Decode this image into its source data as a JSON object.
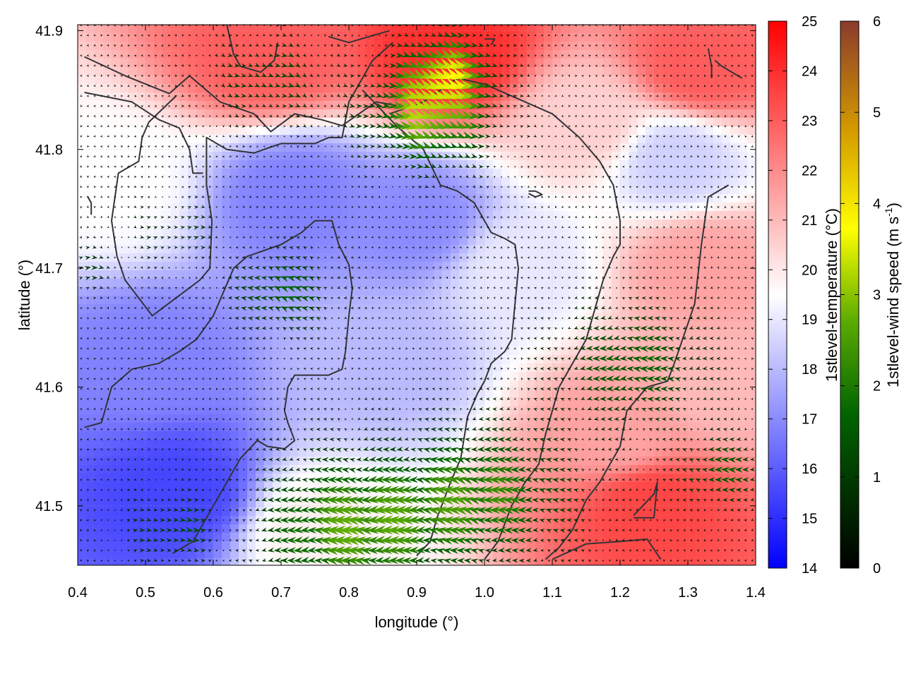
{
  "chart_data": {
    "type": "heatmap",
    "title": "",
    "xlabel": "longitude (°)",
    "ylabel": "latitude (°)",
    "xlim": [
      0.4,
      1.4
    ],
    "ylim": [
      41.45,
      41.905
    ],
    "x_ticks": [
      "0.4",
      "0.5",
      "0.6",
      "0.7",
      "0.8",
      "0.9",
      "1.0",
      "1.1",
      "1.2",
      "1.3",
      "1.4"
    ],
    "y_ticks": [
      "41.5",
      "41.6",
      "41.7",
      "41.8",
      "41.9"
    ],
    "grid": true,
    "temperature_colorbar": {
      "label": "1stlevel-temperature (°C)",
      "range": [
        14,
        25
      ],
      "ticks": [
        "14",
        "15",
        "16",
        "17",
        "18",
        "19",
        "20",
        "21",
        "22",
        "23",
        "24",
        "25"
      ],
      "colors": [
        "#0000ff",
        "#ffffff",
        "#ff0000"
      ]
    },
    "wind_colorbar": {
      "label_main": "1stlevel-wind speed (m s",
      "label_sup": "-1",
      "label_end": ")",
      "range": [
        0,
        6
      ],
      "ticks": [
        "0",
        "1",
        "2",
        "3",
        "4",
        "5",
        "6"
      ],
      "colors": [
        "#000000",
        "#006400",
        "#5aaa00",
        "#ffff00",
        "#d49a00",
        "#8b3a2b"
      ]
    },
    "temperature_regions": [
      {
        "x": 0.68,
        "y": 41.88,
        "temp": 23.0
      },
      {
        "x": 0.95,
        "y": 41.88,
        "temp": 24.0
      },
      {
        "x": 1.32,
        "y": 41.87,
        "temp": 23.0
      },
      {
        "x": 1.25,
        "y": 41.5,
        "temp": 23.5
      },
      {
        "x": 1.2,
        "y": 41.56,
        "temp": 21.5
      },
      {
        "x": 1.32,
        "y": 41.7,
        "temp": 21.5
      },
      {
        "x": 1.35,
        "y": 41.6,
        "temp": 21.0
      },
      {
        "x": 1.15,
        "y": 41.82,
        "temp": 20.5
      },
      {
        "x": 0.72,
        "y": 41.76,
        "temp": 16.8
      },
      {
        "x": 0.9,
        "y": 41.74,
        "temp": 17.0
      },
      {
        "x": 0.55,
        "y": 41.51,
        "temp": 15.5
      },
      {
        "x": 0.5,
        "y": 41.62,
        "temp": 16.8
      },
      {
        "x": 0.85,
        "y": 41.62,
        "temp": 18.0
      },
      {
        "x": 1.28,
        "y": 41.79,
        "temp": 18.5
      },
      {
        "x": 0.45,
        "y": 41.77,
        "temp": 19.5
      },
      {
        "x": 0.75,
        "y": 41.48,
        "temp": 19.8
      },
      {
        "x": 1.05,
        "y": 41.7,
        "temp": 19.0
      }
    ],
    "wind_field": {
      "regions": [
        {
          "x": 0.92,
          "y": 41.83,
          "u": 3.0,
          "v": -0.6,
          "radius": 0.09
        },
        {
          "x": 0.95,
          "y": 41.87,
          "u": 2.2,
          "v": -0.5,
          "radius": 0.06
        },
        {
          "x": 0.8,
          "y": 41.48,
          "u": -2.4,
          "v": 0.0,
          "radius": 0.13
        },
        {
          "x": 1.0,
          "y": 41.51,
          "u": -2.0,
          "v": 0.2,
          "radius": 0.12
        },
        {
          "x": 1.22,
          "y": 41.62,
          "u": -1.6,
          "v": 0.0,
          "radius": 0.1
        },
        {
          "x": 1.35,
          "y": 41.53,
          "u": -1.4,
          "v": 0.2,
          "radius": 0.06
        },
        {
          "x": 0.7,
          "y": 41.68,
          "u": -1.5,
          "v": 0.4,
          "radius": 0.07
        },
        {
          "x": 0.55,
          "y": 41.48,
          "u": 1.4,
          "v": 0.0,
          "radius": 0.07
        },
        {
          "x": 0.68,
          "y": 41.86,
          "u": 1.2,
          "v": -0.5,
          "radius": 0.08
        },
        {
          "x": 0.55,
          "y": 41.73,
          "u": 0.9,
          "v": 0.0,
          "radius": 0.06
        },
        {
          "x": 0.42,
          "y": 41.7,
          "u": 0.9,
          "v": 0.0,
          "radius": 0.04
        }
      ],
      "background_speed": 0.25
    },
    "contour_lines": [
      [
        [
          0.41,
          41.878
        ],
        [
          0.47,
          41.862
        ],
        [
          0.535,
          41.847
        ],
        [
          0.565,
          41.862
        ],
        [
          0.61,
          41.84
        ],
        [
          0.66,
          41.83
        ],
        [
          0.685,
          41.815
        ],
        [
          0.72,
          41.83
        ],
        [
          0.76,
          41.825
        ],
        [
          0.79,
          41.82
        ],
        [
          0.84,
          41.84
        ],
        [
          0.87,
          41.837
        ]
      ],
      [
        [
          0.41,
          41.848
        ],
        [
          0.48,
          41.84
        ],
        [
          0.52,
          41.825
        ],
        [
          0.55,
          41.818
        ],
        [
          0.565,
          41.8
        ],
        [
          0.57,
          41.78
        ],
        [
          0.585,
          41.78
        ]
      ],
      [
        [
          0.545,
          41.845
        ],
        [
          0.505,
          41.823
        ],
        [
          0.495,
          41.81
        ],
        [
          0.49,
          41.79
        ],
        [
          0.46,
          41.78
        ],
        [
          0.45,
          41.74
        ],
        [
          0.458,
          41.71
        ],
        [
          0.47,
          41.69
        ],
        [
          0.51,
          41.66
        ],
        [
          0.545,
          41.675
        ],
        [
          0.58,
          41.69
        ],
        [
          0.595,
          41.7
        ],
        [
          0.598,
          41.74
        ],
        [
          0.59,
          41.77
        ],
        [
          0.59,
          41.81
        ],
        [
          0.62,
          41.8
        ],
        [
          0.66,
          41.797
        ],
        [
          0.7,
          41.805
        ],
        [
          0.75,
          41.805
        ],
        [
          0.77,
          41.81
        ],
        [
          0.79,
          41.81
        ],
        [
          0.8,
          41.84
        ],
        [
          0.82,
          41.86
        ],
        [
          0.835,
          41.875
        ],
        [
          0.865,
          41.89
        ]
      ],
      [
        [
          0.415,
          41.76
        ],
        [
          0.42,
          41.755
        ],
        [
          0.42,
          41.745
        ]
      ],
      [
        [
          0.41,
          41.566
        ],
        [
          0.435,
          41.57
        ],
        [
          0.45,
          41.6
        ],
        [
          0.48,
          41.615
        ],
        [
          0.52,
          41.62
        ],
        [
          0.55,
          41.63
        ],
        [
          0.575,
          41.64
        ],
        [
          0.6,
          41.66
        ],
        [
          0.615,
          41.68
        ],
        [
          0.63,
          41.7
        ],
        [
          0.65,
          41.71
        ],
        [
          0.675,
          41.715
        ],
        [
          0.7,
          41.72
        ],
        [
          0.73,
          41.73
        ],
        [
          0.75,
          41.74
        ],
        [
          0.775,
          41.74
        ],
        [
          0.785,
          41.72
        ],
        [
          0.8,
          41.703
        ],
        [
          0.805,
          41.683
        ],
        [
          0.8,
          41.66
        ],
        [
          0.795,
          41.63
        ],
        [
          0.79,
          41.615
        ],
        [
          0.77,
          41.61
        ],
        [
          0.745,
          41.61
        ],
        [
          0.72,
          41.61
        ],
        [
          0.71,
          41.6
        ],
        [
          0.705,
          41.58
        ],
        [
          0.71,
          41.57
        ],
        [
          0.72,
          41.555
        ],
        [
          0.705,
          41.548
        ],
        [
          0.68,
          41.55
        ],
        [
          0.665,
          41.555
        ],
        [
          0.64,
          41.54
        ],
        [
          0.62,
          41.52
        ],
        [
          0.6,
          41.5
        ],
        [
          0.59,
          41.49
        ],
        [
          0.57,
          41.47
        ],
        [
          0.54,
          41.46
        ]
      ],
      [
        [
          0.82,
          41.85
        ],
        [
          0.87,
          41.82
        ],
        [
          0.91,
          41.8
        ],
        [
          0.935,
          41.77
        ],
        [
          0.96,
          41.765
        ],
        [
          0.985,
          41.755
        ],
        [
          1.0,
          41.74
        ],
        [
          1.01,
          41.73
        ],
        [
          1.03,
          41.725
        ],
        [
          1.045,
          41.72
        ],
        [
          1.05,
          41.7
        ],
        [
          1.045,
          41.67
        ],
        [
          1.04,
          41.64
        ],
        [
          1.03,
          41.63
        ],
        [
          1.01,
          41.62
        ],
        [
          1.0,
          41.605
        ],
        [
          0.99,
          41.595
        ],
        [
          0.975,
          41.575
        ],
        [
          0.965,
          41.54
        ],
        [
          0.95,
          41.52
        ],
        [
          0.93,
          41.49
        ],
        [
          0.92,
          41.47
        ],
        [
          0.9,
          41.458
        ]
      ],
      [
        [
          0.86,
          41.83
        ],
        [
          0.91,
          41.84
        ],
        [
          0.96,
          41.86
        ],
        [
          1.0,
          41.855
        ],
        [
          1.06,
          41.84
        ],
        [
          1.1,
          41.83
        ],
        [
          1.14,
          41.81
        ],
        [
          1.17,
          41.79
        ],
        [
          1.19,
          41.77
        ],
        [
          1.2,
          41.74
        ],
        [
          1.2,
          41.72
        ],
        [
          1.19,
          41.71
        ],
        [
          1.175,
          41.69
        ],
        [
          1.16,
          41.66
        ],
        [
          1.15,
          41.64
        ],
        [
          1.13,
          41.62
        ],
        [
          1.11,
          41.6
        ],
        [
          1.09,
          41.56
        ],
        [
          1.08,
          41.535
        ],
        [
          1.06,
          41.52
        ],
        [
          1.04,
          41.5
        ],
        [
          1.02,
          41.47
        ],
        [
          1.0,
          41.455
        ]
      ],
      [
        [
          1.065,
          41.765
        ],
        [
          1.075,
          41.765
        ],
        [
          1.085,
          41.762
        ],
        [
          1.075,
          41.76
        ],
        [
          1.065,
          41.763
        ]
      ],
      [
        [
          1.36,
          41.77
        ],
        [
          1.33,
          41.76
        ],
        [
          1.32,
          41.72
        ],
        [
          1.31,
          41.67
        ],
        [
          1.28,
          41.62
        ],
        [
          1.27,
          41.605
        ],
        [
          1.24,
          41.6
        ],
        [
          1.21,
          41.58
        ],
        [
          1.2,
          41.55
        ],
        [
          1.17,
          41.52
        ],
        [
          1.15,
          41.505
        ],
        [
          1.13,
          41.48
        ],
        [
          1.11,
          41.465
        ],
        [
          1.09,
          41.455
        ]
      ],
      [
        [
          1.22,
          41.492
        ],
        [
          1.25,
          41.51
        ],
        [
          1.255,
          41.52
        ],
        [
          1.25,
          41.49
        ],
        [
          1.22,
          41.49
        ]
      ],
      [
        [
          1.1,
          41.455
        ],
        [
          1.15,
          41.468
        ],
        [
          1.2,
          41.47
        ],
        [
          1.24,
          41.472
        ],
        [
          1.26,
          41.455
        ]
      ],
      [
        [
          1.34,
          41.875
        ],
        [
          1.35,
          41.87
        ],
        [
          1.38,
          41.86
        ]
      ],
      [
        [
          1.33,
          41.885
        ],
        [
          1.335,
          41.87
        ],
        [
          1.335,
          41.86
        ]
      ],
      [
        [
          0.62,
          41.905
        ],
        [
          0.63,
          41.88
        ],
        [
          0.64,
          41.87
        ],
        [
          0.67,
          41.865
        ],
        [
          0.69,
          41.875
        ],
        [
          0.695,
          41.89
        ]
      ],
      [
        [
          0.77,
          41.895
        ],
        [
          0.8,
          41.89
        ],
        [
          0.83,
          41.895
        ],
        [
          0.86,
          41.9
        ]
      ],
      [
        [
          1.0,
          41.893
        ],
        [
          1.015,
          41.893
        ],
        [
          1.01,
          41.888
        ]
      ]
    ]
  }
}
